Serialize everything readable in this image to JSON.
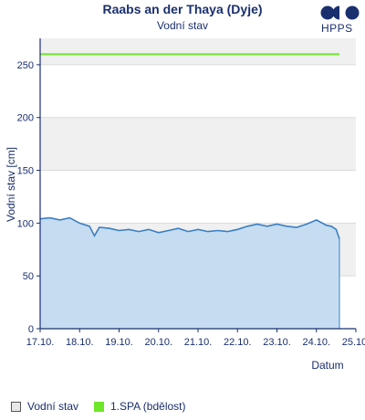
{
  "header": {
    "title": "Raabs an der Thaya (Dyje)",
    "subtitle": "Vodní stav",
    "logo_text": "HPPS"
  },
  "colors": {
    "text": "#1a2f6e",
    "water_line": "#3a7fc2",
    "water_fill": "#c5dcf1",
    "spa_line": "#6ee62a",
    "grid_band": "#f0f0f0",
    "axis": "#1a2f6e"
  },
  "legend": {
    "items": [
      {
        "label": "Vodní stav",
        "color": "#e8e8e8",
        "border": "#555555"
      },
      {
        "label": "1.SPA (bdělost)",
        "color": "#6ee62a",
        "border": "#6ee62a"
      }
    ]
  },
  "chart_data": {
    "type": "area",
    "xlabel": "Datum",
    "ylabel": "Vodní stav [cm]",
    "ylim": [
      0,
      275
    ],
    "yticks": [
      0,
      50,
      100,
      150,
      200,
      250
    ],
    "xlim": [
      "2024-10-17",
      "2024-10-25"
    ],
    "xtick_labels": [
      "17.10.",
      "18.10.",
      "19.10.",
      "20.10.",
      "21.10.",
      "22.10.",
      "23.10.",
      "24.10.",
      "25.10."
    ],
    "grid_bands": [
      [
        50,
        100
      ],
      [
        150,
        200
      ],
      [
        250,
        275
      ]
    ],
    "series": [
      {
        "name": "Vodní stav",
        "x": [
          "2024-10-17 00:00",
          "2024-10-17 06:00",
          "2024-10-17 12:00",
          "2024-10-17 18:00",
          "2024-10-18 00:00",
          "2024-10-18 06:00",
          "2024-10-18 09:00",
          "2024-10-18 12:00",
          "2024-10-18 18:00",
          "2024-10-19 00:00",
          "2024-10-19 06:00",
          "2024-10-19 12:00",
          "2024-10-19 18:00",
          "2024-10-20 00:00",
          "2024-10-20 06:00",
          "2024-10-20 12:00",
          "2024-10-20 18:00",
          "2024-10-21 00:00",
          "2024-10-21 06:00",
          "2024-10-21 12:00",
          "2024-10-21 18:00",
          "2024-10-22 00:00",
          "2024-10-22 06:00",
          "2024-10-22 12:00",
          "2024-10-22 18:00",
          "2024-10-23 00:00",
          "2024-10-23 06:00",
          "2024-10-23 12:00",
          "2024-10-23 18:00",
          "2024-10-24 00:00",
          "2024-10-24 06:00",
          "2024-10-24 09:00",
          "2024-10-24 12:00",
          "2024-10-24 14:00"
        ],
        "values": [
          104,
          105,
          103,
          105,
          100,
          97,
          88,
          96,
          95,
          93,
          94,
          92,
          94,
          91,
          93,
          95,
          92,
          94,
          92,
          93,
          92,
          94,
          97,
          99,
          97,
          99,
          97,
          96,
          99,
          103,
          98,
          97,
          94,
          85
        ]
      },
      {
        "name": "1.SPA (bdělost)",
        "x": [
          "2024-10-17 00:00",
          "2024-10-24 14:00"
        ],
        "values": [
          260,
          260
        ]
      }
    ]
  }
}
